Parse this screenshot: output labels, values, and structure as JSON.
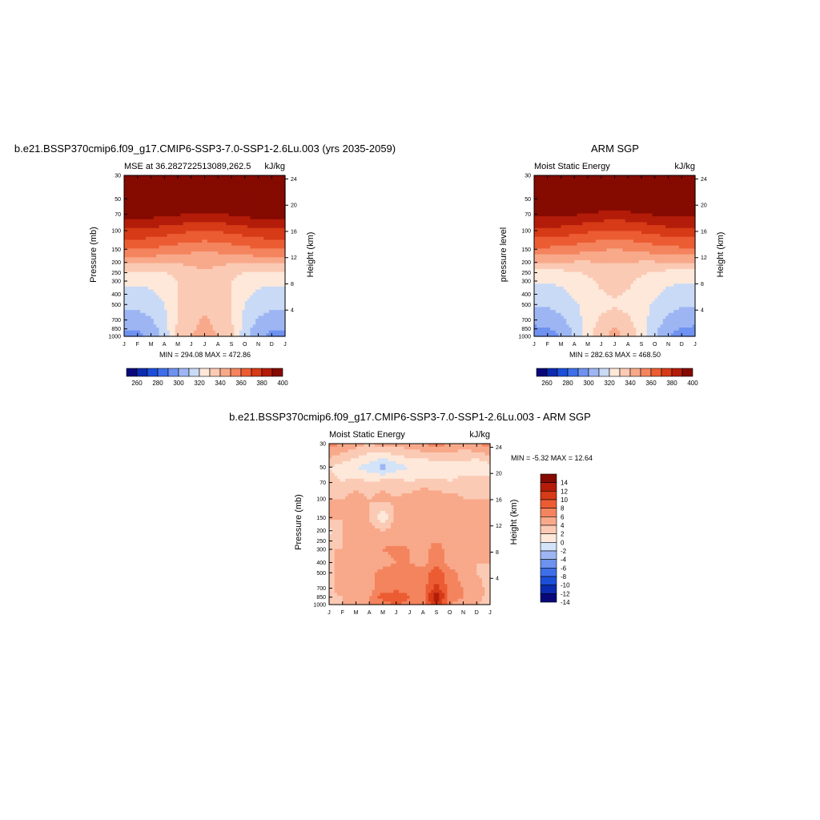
{
  "colors": {
    "mse_palette": [
      "#08087a",
      "#0b2bb0",
      "#1c4fd8",
      "#3f6fe8",
      "#6e92ef",
      "#9db6f3",
      "#c9daf6",
      "#fde8da",
      "#fbcab4",
      "#f8a98a",
      "#f4845e",
      "#ec5c33",
      "#d63a16",
      "#b31c09",
      "#850a00"
    ],
    "diff_palette": [
      "#08087a",
      "#0b2bb0",
      "#1c4fd8",
      "#3f6fe8",
      "#6e92ef",
      "#9db6f3",
      "#d3e3f8",
      "#fde8da",
      "#fbcab4",
      "#f8a98a",
      "#f4845e",
      "#ec5c33",
      "#d63a16",
      "#b31c09",
      "#850a00"
    ]
  },
  "panel1": {
    "title": "b.e21.BSSP370cmip6.f09_g17.CMIP6-SSP3-7.0-SSP1-2.6Lu.003 (yrs 2035-2059)",
    "left_label": "MSE at 36.282722513089,262.5",
    "units": "kJ/kg",
    "ylabel": "Pressure (mb)",
    "y2label": "Height (km)",
    "minmax": "MIN = 294.08 MAX = 472.86"
  },
  "panel2": {
    "title": "ARM SGP",
    "left_label": "Moist Static Energy",
    "units": "kJ/kg",
    "ylabel": "pressure level",
    "y2label": "Height (km)",
    "minmax": "MIN = 282.63 MAX = 468.50"
  },
  "panel3": {
    "title": "b.e21.BSSP370cmip6.f09_g17.CMIP6-SSP3-7.0-SSP1-2.6Lu.003 - ARM SGP",
    "left_label": "Moist Static Energy",
    "units": "kJ/kg",
    "ylabel": "Pressure (mb)",
    "y2label": "Height (km)",
    "minmax": "MIN =  -5.32 MAX =  12.64"
  },
  "chart_data": [
    {
      "type": "heatmap",
      "title": "b.e21.BSSP370cmip6.f09_g17.CMIP6-SSP3-7.0-SSP1-2.6Lu.003 (yrs 2035-2059)",
      "x": [
        "J",
        "F",
        "M",
        "A",
        "M",
        "J",
        "J",
        "A",
        "S",
        "O",
        "N",
        "D",
        "J"
      ],
      "y_ticks": [
        30,
        50,
        70,
        100,
        150,
        200,
        250,
        300,
        400,
        500,
        700,
        850,
        1000
      ],
      "y2_ticks": [
        24,
        20,
        16,
        12,
        8,
        4
      ],
      "ylabel": "Pressure (mb)",
      "y2label": "Height (km)",
      "levels": [
        260,
        270,
        280,
        290,
        300,
        310,
        320,
        330,
        340,
        350,
        360,
        370,
        380,
        390,
        400
      ],
      "colorbar_labels": [
        "260",
        "280",
        "300",
        "320",
        "340",
        "360",
        "380",
        "400"
      ],
      "pressure_rows": [
        30,
        50,
        70,
        100,
        150,
        200,
        250,
        300,
        400,
        500,
        700,
        850,
        1000
      ],
      "values": [
        [
          472,
          472,
          472,
          472,
          472,
          472,
          472,
          472,
          472,
          472,
          472,
          472,
          472
        ],
        [
          410,
          410,
          410,
          410,
          408,
          406,
          405,
          406,
          408,
          410,
          410,
          410,
          410
        ],
        [
          395,
          395,
          394,
          393,
          391,
          389,
          388,
          389,
          391,
          393,
          395,
          395,
          395
        ],
        [
          378,
          378,
          377,
          375,
          373,
          371,
          370,
          371,
          373,
          375,
          377,
          378,
          378
        ],
        [
          360,
          360,
          359,
          357,
          355,
          353,
          352,
          353,
          355,
          357,
          359,
          360,
          360
        ],
        [
          342,
          342,
          342,
          341,
          341,
          342,
          343,
          342,
          341,
          341,
          342,
          342,
          342
        ],
        [
          328,
          328,
          328,
          330,
          333,
          337,
          338,
          337,
          333,
          330,
          328,
          328,
          328
        ],
        [
          322,
          322,
          323,
          326,
          330,
          335,
          337,
          335,
          330,
          326,
          323,
          322,
          322
        ],
        [
          316,
          316,
          318,
          323,
          330,
          335,
          337,
          335,
          330,
          323,
          318,
          316,
          316
        ],
        [
          312,
          312,
          314,
          320,
          330,
          336,
          338,
          336,
          330,
          320,
          314,
          312,
          312
        ],
        [
          305,
          306,
          309,
          317,
          331,
          338,
          341,
          338,
          331,
          317,
          309,
          306,
          305
        ],
        [
          300,
          301,
          305,
          315,
          332,
          339,
          342,
          339,
          332,
          315,
          305,
          301,
          300
        ],
        [
          296,
          297,
          303,
          314,
          333,
          340,
          343,
          340,
          333,
          314,
          303,
          297,
          296
        ]
      ],
      "min": 294.08,
      "max": 472.86
    },
    {
      "type": "heatmap",
      "title": "ARM SGP",
      "x": [
        "J",
        "F",
        "M",
        "A",
        "M",
        "J",
        "J",
        "A",
        "S",
        "O",
        "N",
        "D",
        "J"
      ],
      "y_ticks": [
        30,
        50,
        70,
        100,
        150,
        200,
        250,
        300,
        400,
        500,
        700,
        850,
        1000
      ],
      "y2_ticks": [
        24,
        20,
        16,
        12,
        8,
        4
      ],
      "ylabel": "pressure level",
      "y2label": "Height (km)",
      "levels": [
        260,
        270,
        280,
        290,
        300,
        310,
        320,
        330,
        340,
        350,
        360,
        370,
        380,
        390,
        400
      ],
      "colorbar_labels": [
        "260",
        "280",
        "300",
        "320",
        "340",
        "360",
        "380",
        "400"
      ],
      "pressure_rows": [
        30,
        50,
        70,
        100,
        150,
        200,
        250,
        300,
        400,
        500,
        700,
        850,
        1000
      ],
      "values": [
        [
          468,
          468,
          468,
          468,
          468,
          468,
          468,
          468,
          468,
          468,
          468,
          468,
          468
        ],
        [
          408,
          408,
          408,
          408,
          406,
          404,
          403,
          404,
          406,
          408,
          408,
          408,
          408
        ],
        [
          393,
          393,
          392,
          391,
          389,
          387,
          386,
          387,
          389,
          391,
          393,
          393,
          393
        ],
        [
          377,
          377,
          376,
          374,
          372,
          370,
          369,
          370,
          372,
          374,
          376,
          377,
          377
        ],
        [
          358,
          358,
          357,
          355,
          353,
          351,
          350,
          351,
          353,
          355,
          357,
          358,
          358
        ],
        [
          340,
          340,
          340,
          339,
          339,
          340,
          341,
          340,
          339,
          339,
          340,
          340,
          340
        ],
        [
          327,
          327,
          327,
          329,
          331,
          335,
          336,
          335,
          331,
          329,
          327,
          327,
          327
        ],
        [
          321,
          321,
          322,
          325,
          328,
          332,
          334,
          332,
          328,
          325,
          322,
          321,
          321
        ],
        [
          315,
          315,
          317,
          322,
          326,
          329,
          331,
          329,
          326,
          322,
          317,
          315,
          315
        ],
        [
          311,
          311,
          313,
          318,
          324,
          327,
          329,
          327,
          324,
          318,
          313,
          311,
          311
        ],
        [
          304,
          305,
          308,
          315,
          324,
          332,
          334,
          332,
          324,
          315,
          308,
          305,
          304
        ],
        [
          298,
          299,
          303,
          313,
          326,
          334,
          342,
          334,
          326,
          313,
          303,
          299,
          298
        ],
        [
          294,
          295,
          301,
          312,
          327,
          336,
          343,
          336,
          327,
          312,
          301,
          295,
          294
        ]
      ],
      "min": 282.63,
      "max": 468.5
    },
    {
      "type": "heatmap",
      "title": "b.e21.BSSP370cmip6.f09_g17.CMIP6-SSP3-7.0-SSP1-2.6Lu.003 - ARM SGP",
      "x": [
        "J",
        "F",
        "M",
        "A",
        "M",
        "J",
        "J",
        "A",
        "S",
        "O",
        "N",
        "D",
        "J"
      ],
      "y_ticks": [
        30,
        50,
        70,
        100,
        150,
        200,
        250,
        300,
        400,
        500,
        700,
        850,
        1000
      ],
      "y2_ticks": [
        24,
        20,
        16,
        12,
        8,
        4
      ],
      "ylabel": "Pressure (mb)",
      "y2label": "Height (km)",
      "levels": [
        -14,
        -12,
        -10,
        -8,
        -6,
        -4,
        -2,
        0,
        2,
        4,
        6,
        8,
        10,
        12,
        14
      ],
      "colorbar_labels": [
        "14",
        "12",
        "10",
        "8",
        "6",
        "4",
        "2",
        "0",
        "-2",
        "-4",
        "-6",
        "-8",
        "-10",
        "-12",
        "-14"
      ],
      "pressure_rows": [
        30,
        50,
        70,
        100,
        150,
        200,
        250,
        300,
        400,
        500,
        700,
        850,
        1000
      ],
      "values": [
        [
          5,
          4,
          3,
          2,
          3,
          3,
          3,
          4,
          5,
          4,
          3,
          4,
          5
        ],
        [
          0,
          -1,
          -2,
          -3,
          -5,
          -3,
          -2,
          -2,
          -2,
          -1,
          -1,
          -2,
          -1
        ],
        [
          1,
          0,
          1,
          0,
          1,
          1,
          0,
          1,
          1,
          0,
          1,
          1,
          1
        ],
        [
          2,
          2,
          3,
          2,
          3,
          2,
          3,
          4,
          3,
          3,
          2,
          2,
          2
        ],
        [
          3,
          2,
          3,
          2,
          -2,
          3,
          2,
          3,
          3,
          3,
          2,
          2,
          3
        ],
        [
          -1,
          2,
          3,
          3,
          2,
          3,
          3,
          2,
          2,
          3,
          2,
          2,
          2
        ],
        [
          1,
          2,
          2,
          3,
          3,
          3,
          3,
          3,
          4,
          3,
          2,
          2,
          2
        ],
        [
          2,
          2,
          2,
          3,
          4,
          5,
          4,
          3,
          5,
          3,
          2,
          2,
          2
        ],
        [
          1,
          3,
          2,
          3,
          3,
          4,
          4,
          3,
          6,
          3,
          2,
          2,
          2
        ],
        [
          1,
          4,
          2,
          3,
          5,
          5,
          5,
          5,
          7,
          5,
          3,
          2,
          1
        ],
        [
          1,
          4,
          2,
          3,
          5,
          5,
          5,
          5,
          9,
          5,
          4,
          3,
          1
        ],
        [
          1,
          2,
          3,
          4,
          7,
          8,
          6,
          5,
          12,
          5,
          4,
          3,
          1
        ],
        [
          1,
          2,
          2,
          4,
          5,
          6,
          5,
          5,
          10,
          4,
          3,
          2,
          1
        ]
      ],
      "min": -5.32,
      "max": 12.64
    }
  ]
}
